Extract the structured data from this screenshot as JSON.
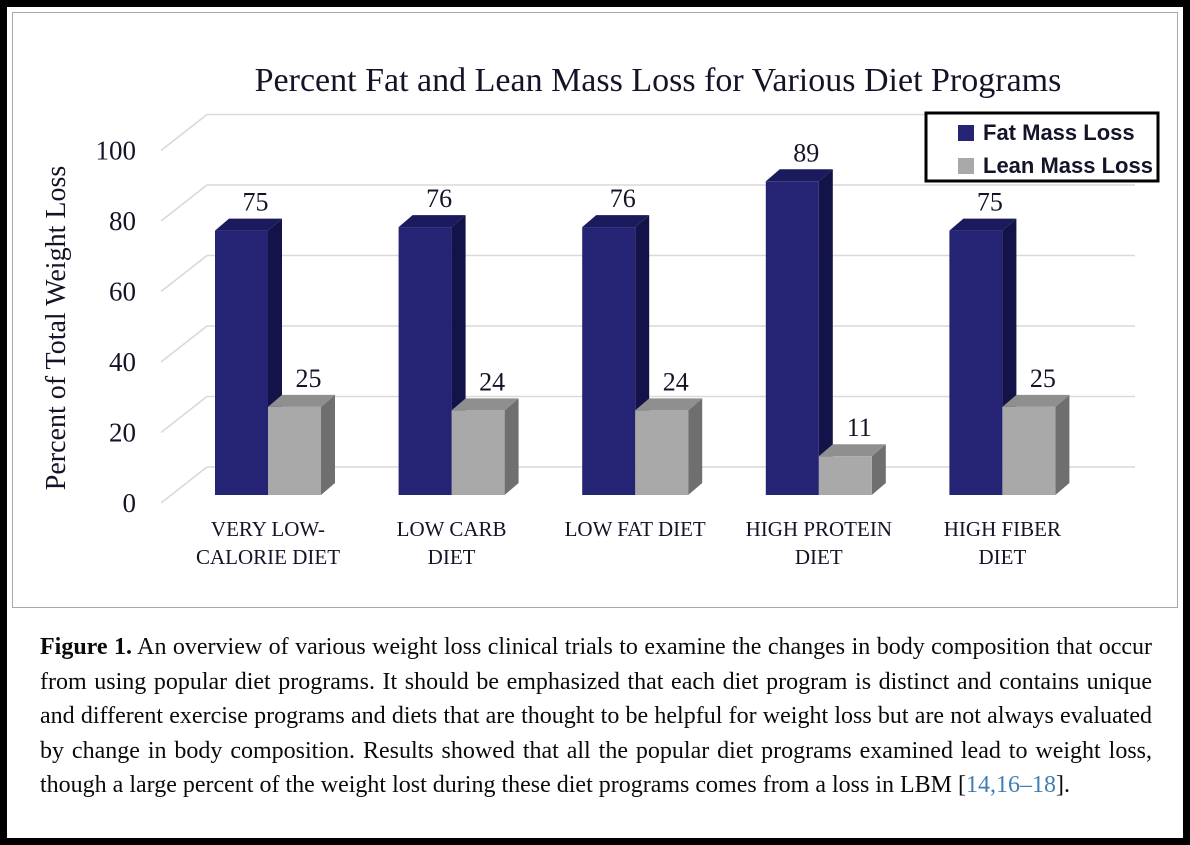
{
  "chart_data": {
    "type": "bar",
    "style": "3d-clustered-column",
    "title": "Percent Fat and Lean Mass Loss for Various Diet Programs",
    "xlabel": "",
    "ylabel": "Percent of Total Weight Loss",
    "ylim": [
      0,
      100
    ],
    "yticks": [
      0,
      20,
      40,
      60,
      80,
      100
    ],
    "grid": true,
    "legend_position": "top-right",
    "categories": [
      "VERY LOW-CALORIE DIET",
      "LOW CARB DIET",
      "LOW FAT DIET",
      "HIGH PROTEIN DIET",
      "HIGH FIBER DIET"
    ],
    "category_lines": [
      [
        "VERY LOW-",
        "CALORIE DIET"
      ],
      [
        "LOW CARB",
        "DIET"
      ],
      [
        "LOW FAT DIET"
      ],
      [
        "HIGH PROTEIN",
        "DIET"
      ],
      [
        "HIGH FIBER",
        "DIET"
      ]
    ],
    "series": [
      {
        "name": "Fat Mass Loss",
        "values": [
          75,
          76,
          76,
          89,
          75
        ]
      },
      {
        "name": "Lean Mass Loss",
        "values": [
          25,
          24,
          24,
          11,
          25
        ]
      }
    ]
  },
  "colors": {
    "fat_front": "#242374",
    "fat_top": "#1A1A5C",
    "fat_side": "#131349",
    "lean_front": "#A9A9A9",
    "lean_top": "#8F8F8F",
    "lean_side": "#6F6F6F",
    "grid": "#D9D9D9",
    "chart_text": "#141428",
    "legend_border": "#000000",
    "citation_blue": "#3E7FB5"
  },
  "caption": {
    "label": "Figure 1.",
    "body": "An overview of various weight loss clinical trials to examine the changes in body composition that occur from using popular diet programs.  It should be emphasized that each diet program is distinct and contains unique and different exercise programs and diets that are thought to be helpful for weight loss but are not always evaluated by change in body composition. Results showed that all the popular diet programs examined lead to weight loss, though a large percent of the weight lost during these diet programs comes from a loss in LBM [",
    "citation": "14,16–18",
    "closing": "]."
  }
}
